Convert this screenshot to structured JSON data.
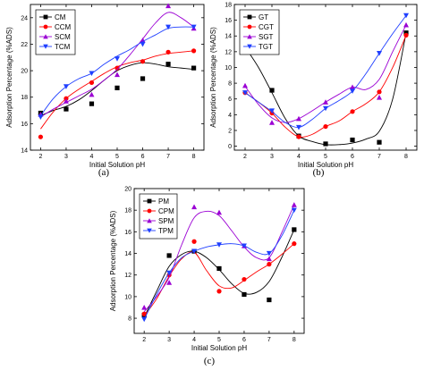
{
  "figure": {
    "captions": [
      "(a)",
      "(b)",
      "(c)"
    ]
  },
  "chart_data": [
    {
      "type": "line",
      "panel": "(a)",
      "title": "",
      "xlabel": "Initial Solution pH",
      "ylabel": "Adsorption Percentage (%ADS)",
      "xlim": [
        1.6,
        8.4
      ],
      "ylim": [
        14,
        25
      ],
      "x_ticks": [
        2,
        3,
        4,
        5,
        6,
        7,
        8
      ],
      "y_ticks": [
        14,
        16,
        18,
        20,
        22,
        24
      ],
      "legend_position": "top-left",
      "x": [
        2,
        3,
        4,
        5,
        6,
        7,
        8
      ],
      "series": [
        {
          "name": "CM",
          "color": "#000000",
          "marker": "square",
          "values": [
            16.8,
            17.1,
            17.5,
            18.7,
            19.4,
            20.5,
            20.2
          ],
          "curve": [
            16.6,
            17.0,
            17.3,
            17.8,
            18.5,
            19.3,
            20.0,
            20.4,
            20.6,
            20.5,
            20.3,
            20.2,
            20.1
          ]
        },
        {
          "name": "CCM",
          "color": "#ff0000",
          "marker": "circle",
          "values": [
            15.0,
            17.9,
            19.1,
            20.2,
            20.7,
            21.4,
            21.5
          ],
          "curve": [
            15.6,
            16.9,
            17.9,
            18.6,
            19.2,
            19.8,
            20.3,
            20.6,
            20.8,
            21.1,
            21.3,
            21.4,
            21.5
          ]
        },
        {
          "name": "SCM",
          "color": "#9b00d4",
          "marker": "triangle-up",
          "values": [
            16.7,
            17.7,
            18.2,
            19.7,
            22.3,
            24.9,
            23.2
          ],
          "curve": [
            16.5,
            17.1,
            17.6,
            18.1,
            18.6,
            19.3,
            20.1,
            21.2,
            22.4,
            23.6,
            24.4,
            24.0,
            23.3
          ]
        },
        {
          "name": "TCM",
          "color": "#1f3fff",
          "marker": "triangle-down",
          "values": [
            16.5,
            18.8,
            19.8,
            20.9,
            22.0,
            23.3,
            23.3
          ],
          "curve": [
            16.6,
            17.9,
            18.8,
            19.4,
            19.8,
            20.5,
            21.1,
            21.6,
            22.2,
            22.7,
            23.2,
            23.3,
            23.3
          ]
        }
      ]
    },
    {
      "type": "line",
      "panel": "(b)",
      "title": "",
      "xlabel": "Initial Solution pH",
      "ylabel": "Adsorption Percentage (%ADS)",
      "xlim": [
        1.6,
        8.4
      ],
      "ylim": [
        -0.5,
        18
      ],
      "x_ticks": [
        2,
        3,
        4,
        5,
        6,
        7,
        8
      ],
      "y_ticks": [
        0,
        2,
        4,
        6,
        8,
        10,
        12,
        14,
        16,
        18
      ],
      "legend_position": "top-left",
      "x": [
        2,
        3,
        4,
        5,
        6,
        7,
        8
      ],
      "series": [
        {
          "name": "GT",
          "color": "#000000",
          "marker": "square",
          "values": [
            12.6,
            7.1,
            1.3,
            0.3,
            0.8,
            0.5,
            14.4
          ],
          "curve": [
            12.6,
            10.0,
            6.8,
            3.5,
            1.3,
            0.6,
            0.2,
            0.2,
            0.4,
            0.9,
            1.9,
            6.0,
            14.4
          ]
        },
        {
          "name": "CGT",
          "color": "#ff0000",
          "marker": "circle",
          "values": [
            6.8,
            4.2,
            1.2,
            2.5,
            4.4,
            6.9,
            14.1
          ],
          "curve": [
            6.8,
            5.6,
            4.2,
            2.4,
            1.2,
            1.5,
            2.5,
            3.2,
            4.4,
            5.4,
            6.9,
            10.0,
            14.1
          ]
        },
        {
          "name": "SGT",
          "color": "#9b00d4",
          "marker": "triangle-up",
          "values": [
            7.7,
            3.0,
            3.5,
            5.6,
            7.5,
            6.2,
            15.4
          ],
          "curve": [
            7.6,
            5.3,
            3.6,
            3.0,
            3.5,
            4.5,
            5.6,
            6.6,
            7.5,
            7.2,
            8.5,
            12.0,
            15.4
          ]
        },
        {
          "name": "TGT",
          "color": "#1f3fff",
          "marker": "triangle-down",
          "values": [
            6.8,
            4.5,
            2.4,
            4.8,
            7.0,
            11.8,
            16.6
          ],
          "curve": [
            6.8,
            5.6,
            4.4,
            3.0,
            2.4,
            3.4,
            4.8,
            5.8,
            7.0,
            9.2,
            11.8,
            14.3,
            16.6
          ]
        }
      ]
    },
    {
      "type": "line",
      "panel": "(c)",
      "title": "",
      "xlabel": "Initial Solution pH",
      "ylabel": "Adsorption Percentage (%ADS)",
      "xlim": [
        1.6,
        8.4
      ],
      "ylim": [
        6.6,
        20
      ],
      "x_ticks": [
        2,
        3,
        4,
        5,
        6,
        7,
        8
      ],
      "y_ticks": [
        8,
        10,
        12,
        14,
        16,
        18,
        20
      ],
      "legend_position": "top-left",
      "x": [
        2,
        3,
        4,
        5,
        6,
        7,
        8
      ],
      "series": [
        {
          "name": "PM",
          "color": "#000000",
          "marker": "square",
          "values": [
            8.3,
            13.8,
            14.2,
            12.6,
            10.2,
            9.7,
            16.2
          ],
          "curve": [
            8.1,
            10.5,
            12.8,
            13.9,
            14.2,
            13.6,
            12.5,
            11.2,
            10.3,
            10.4,
            11.4,
            13.6,
            16.2
          ]
        },
        {
          "name": "CPM",
          "color": "#ff0000",
          "marker": "circle",
          "values": [
            8.4,
            12.0,
            15.1,
            10.5,
            11.6,
            13.0,
            14.9
          ],
          "curve": [
            8.2,
            9.8,
            11.9,
            13.5,
            14.1,
            12.4,
            11.0,
            10.8,
            11.5,
            12.3,
            13.0,
            13.9,
            14.9
          ]
        },
        {
          "name": "SPM",
          "color": "#9b00d4",
          "marker": "triangle-up",
          "values": [
            9.0,
            11.3,
            18.3,
            17.8,
            14.7,
            13.5,
            18.5
          ],
          "curve": [
            8.6,
            10.0,
            11.8,
            14.8,
            17.3,
            17.9,
            17.5,
            16.1,
            14.6,
            13.6,
            13.6,
            15.9,
            18.5
          ]
        },
        {
          "name": "TPM",
          "color": "#1f3fff",
          "marker": "triangle-down",
          "values": [
            7.9,
            12.2,
            14.2,
            14.8,
            14.7,
            14.0,
            18.0
          ],
          "curve": [
            7.9,
            10.2,
            12.2,
            13.6,
            14.2,
            14.6,
            14.8,
            14.9,
            14.7,
            14.1,
            14.0,
            15.6,
            18.0
          ]
        }
      ]
    }
  ]
}
